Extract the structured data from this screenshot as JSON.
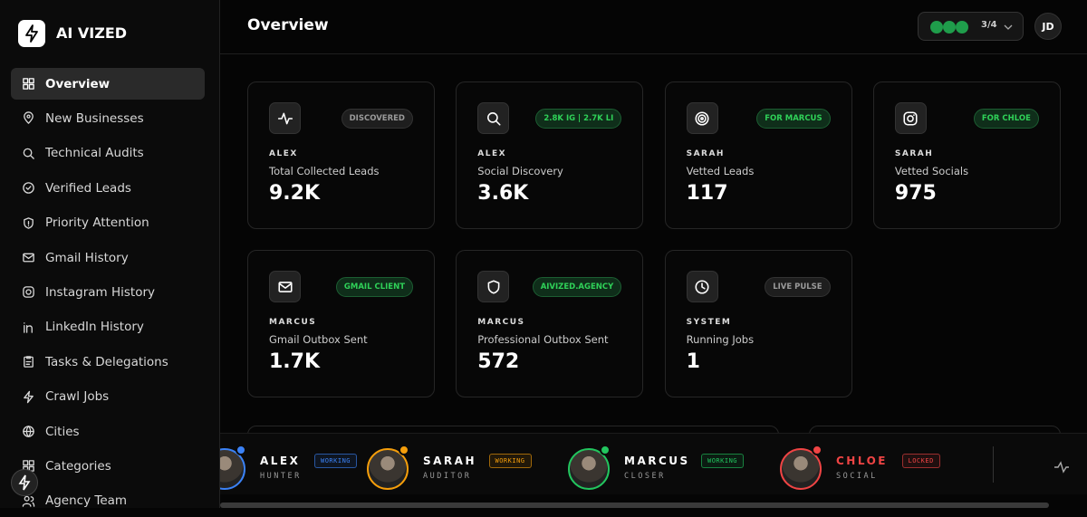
{
  "brand": "AI VIZED",
  "nav": [
    {
      "label": "Overview",
      "active": true
    },
    {
      "label": "New Businesses"
    },
    {
      "label": "Technical Audits"
    },
    {
      "label": "Verified Leads"
    },
    {
      "label": "Priority Attention"
    },
    {
      "label": "Gmail History"
    },
    {
      "label": "Instagram History"
    },
    {
      "label": "LinkedIn History"
    },
    {
      "label": "Tasks & Delegations"
    },
    {
      "label": "Crawl Jobs"
    },
    {
      "label": "Cities"
    },
    {
      "label": "Categories"
    },
    {
      "label": "Agency Team"
    }
  ],
  "header": {
    "title": "Overview",
    "counter": "3/4",
    "avatar": "JD"
  },
  "cards": [
    {
      "badge": "DISCOVERED",
      "badge_color": "#9a9a9a",
      "owner": "ALEX",
      "label": "Total Collected Leads",
      "value": "9.2K"
    },
    {
      "badge": "2.8K IG | 2.7K LI",
      "badge_color": "#2fd158",
      "owner": "ALEX",
      "label": "Social Discovery",
      "value": "3.6K"
    },
    {
      "badge": "FOR MARCUS",
      "badge_color": "#2fd158",
      "owner": "SARAH",
      "label": "Vetted Leads",
      "value": "117"
    },
    {
      "badge": "FOR CHLOE",
      "badge_color": "#2fd158",
      "owner": "SARAH",
      "label": "Vetted Socials",
      "value": "975"
    },
    {
      "badge": "GMAIL CLIENT",
      "badge_color": "#2fd158",
      "owner": "MARCUS",
      "label": "Gmail Outbox Sent",
      "value": "1.7K"
    },
    {
      "badge": "AIVIZED.AGENCY",
      "badge_color": "#2fd158",
      "owner": "MARCUS",
      "label": "Professional Outbox Sent",
      "value": "572"
    },
    {
      "badge": "LIVE PULSE",
      "badge_color": "#9a9a9a",
      "owner": "SYSTEM",
      "label": "Running Jobs",
      "value": "1"
    }
  ],
  "agents": [
    {
      "name": "ALEX",
      "status": "WORKING",
      "role": "HUNTER",
      "color": "#3b82f6"
    },
    {
      "name": "SARAH",
      "status": "WORKING",
      "role": "AUDITOR",
      "color": "#f59e0b"
    },
    {
      "name": "MARCUS",
      "status": "WORKING",
      "role": "CLOSER",
      "color": "#22c55e"
    },
    {
      "name": "CHLOE",
      "status": "LOCKED",
      "role": "SOCIAL",
      "color": "#ef4444"
    }
  ]
}
